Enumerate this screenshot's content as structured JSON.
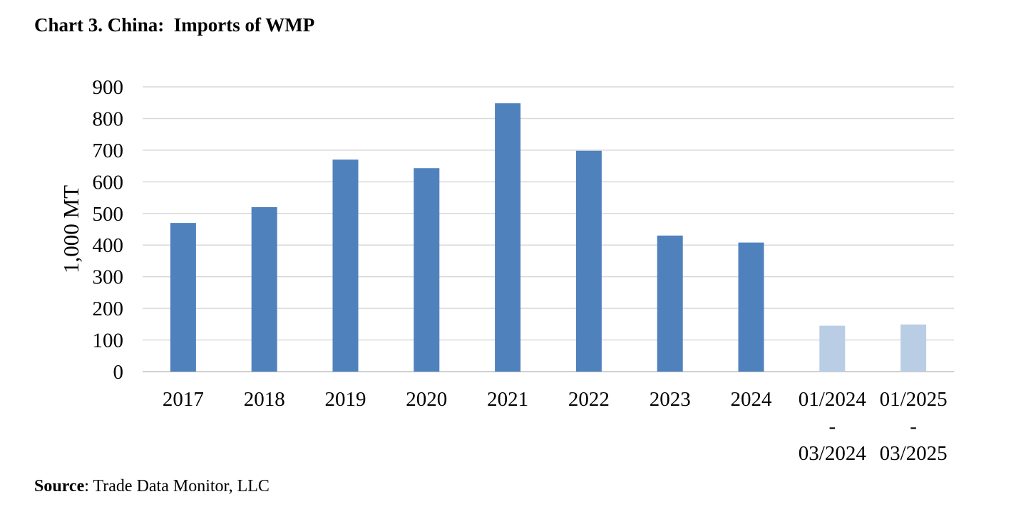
{
  "chart_data": {
    "type": "bar",
    "title": "Chart 3. China:  Imports of WMP",
    "ylabel": "1,000 MT",
    "xlabel": "",
    "ylim": [
      0,
      900
    ],
    "yticks": [
      "0",
      "100",
      "200",
      "300",
      "400",
      "500",
      "600",
      "700",
      "800",
      "900"
    ],
    "categories": [
      [
        "2017"
      ],
      [
        "2018"
      ],
      [
        "2019"
      ],
      [
        "2020"
      ],
      [
        "2021"
      ],
      [
        "2022"
      ],
      [
        "2023"
      ],
      [
        "2024"
      ],
      [
        "01/2024",
        "-",
        "03/2024"
      ],
      [
        "01/2025",
        "-",
        "03/2025"
      ]
    ],
    "values": [
      470,
      520,
      670,
      643,
      848,
      698,
      430,
      408,
      145,
      149
    ],
    "bar_colors": [
      "#4f81bd",
      "#4f81bd",
      "#4f81bd",
      "#4f81bd",
      "#4f81bd",
      "#4f81bd",
      "#4f81bd",
      "#4f81bd",
      "#b9cde5",
      "#b9cde5"
    ],
    "grid": true,
    "legend": "none"
  },
  "source": {
    "label": "Source",
    "text": ": Trade Data Monitor, LLC"
  }
}
